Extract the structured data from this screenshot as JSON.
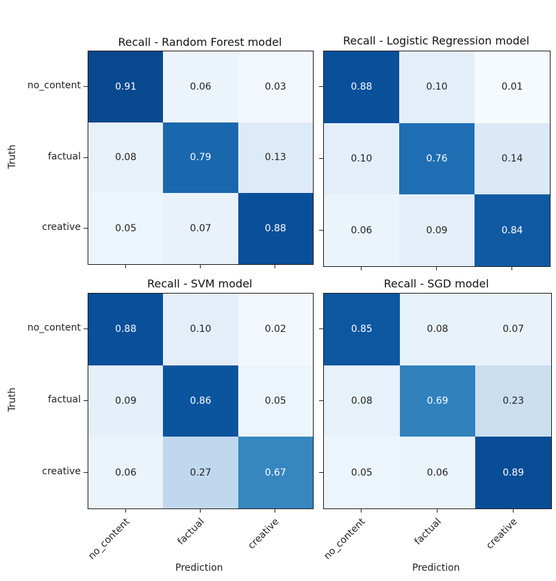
{
  "chart_data": {
    "type": "heatmap",
    "colormap": "Blues",
    "row_labels": [
      "no_content",
      "factual",
      "creative"
    ],
    "col_labels": [
      "no_content",
      "factual",
      "creative"
    ],
    "ylabel": "Truth",
    "xlabel": "Prediction",
    "panels": [
      {
        "title": "Recall - Random Forest model",
        "values": [
          [
            0.91,
            0.06,
            0.03
          ],
          [
            0.08,
            0.79,
            0.13
          ],
          [
            0.05,
            0.07,
            0.88
          ]
        ],
        "labels": [
          [
            "0.91",
            "0.06",
            "0.03"
          ],
          [
            "0.08",
            "0.79",
            "0.13"
          ],
          [
            "0.05",
            "0.07",
            "0.88"
          ]
        ]
      },
      {
        "title": "Recall - Logistic Regression model",
        "values": [
          [
            0.88,
            0.1,
            0.01
          ],
          [
            0.1,
            0.76,
            0.14
          ],
          [
            0.06,
            0.09,
            0.84
          ]
        ],
        "labels": [
          [
            "0.88",
            "0.10",
            "0.01"
          ],
          [
            "0.10",
            "0.76",
            "0.14"
          ],
          [
            "0.06",
            "0.09",
            "0.84"
          ]
        ]
      },
      {
        "title": "Recall - SVM model",
        "values": [
          [
            0.88,
            0.1,
            0.02
          ],
          [
            0.09,
            0.86,
            0.05
          ],
          [
            0.06,
            0.27,
            0.67
          ]
        ],
        "labels": [
          [
            "0.88",
            "0.10",
            "0.02"
          ],
          [
            "0.09",
            "0.86",
            "0.05"
          ],
          [
            "0.06",
            "0.27",
            "0.67"
          ]
        ]
      },
      {
        "title": "Recall - SGD model",
        "values": [
          [
            0.85,
            0.08,
            0.07
          ],
          [
            0.08,
            0.69,
            0.23
          ],
          [
            0.05,
            0.06,
            0.89
          ]
        ],
        "labels": [
          [
            "0.85",
            "0.08",
            "0.07"
          ],
          [
            "0.08",
            "0.69",
            "0.23"
          ],
          [
            "0.05",
            "0.06",
            "0.89"
          ]
        ]
      }
    ]
  }
}
